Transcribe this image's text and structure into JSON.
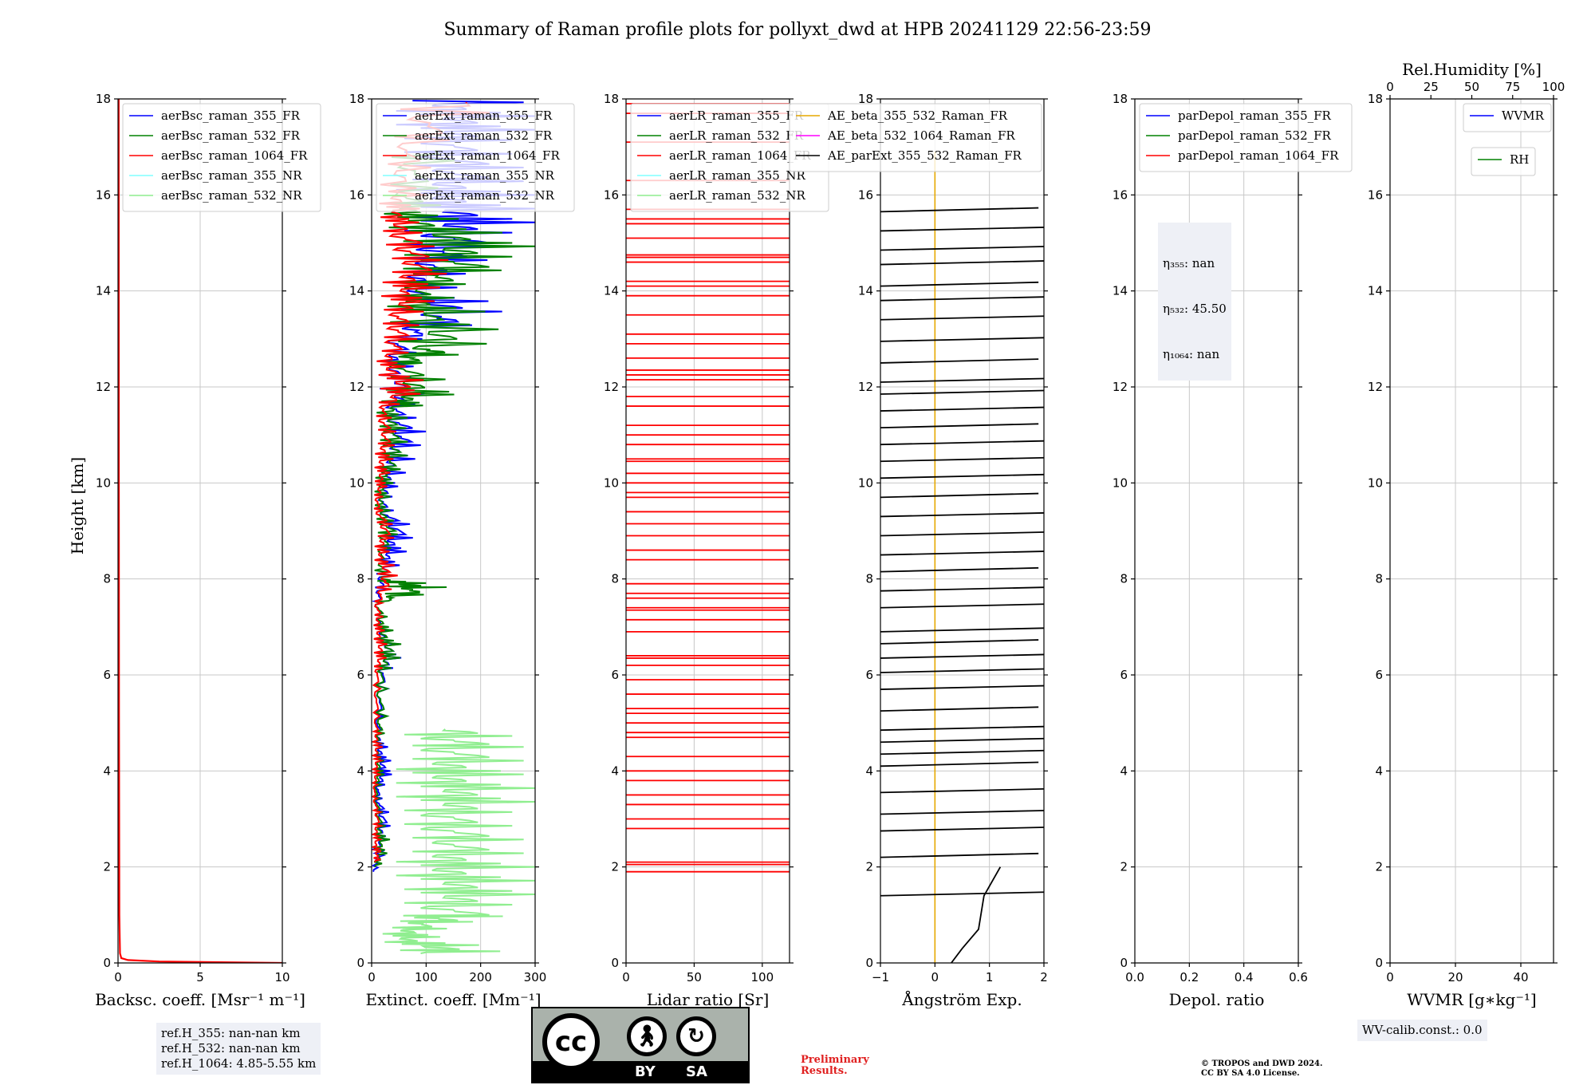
{
  "title": "Summary of Raman profile plots for pollyxt_dwd at HPB 20241129 22:56-23:59",
  "ylabel": "Height [km]",
  "y_ticks": [
    "0",
    "2",
    "4",
    "6",
    "8",
    "10",
    "12",
    "14",
    "16",
    "18"
  ],
  "colors": {
    "blue": "#0000ff",
    "green": "#008000",
    "red": "#ff0000",
    "cyan": "#80ffff",
    "lightgreen": "#90ee90",
    "orange": "#e6a800",
    "magenta": "#ff00ff",
    "black": "#000000"
  },
  "chart_data": [
    {
      "type": "line",
      "id": "bsc",
      "xlabel": "Backsc. coeff. [Msr⁻¹ m⁻¹]",
      "xlim": [
        0,
        10
      ],
      "ylim": [
        0,
        18
      ],
      "x_ticks": [
        "0",
        "5",
        "10"
      ],
      "x_tick_values": [
        0,
        5,
        10
      ],
      "legend": [
        "aerBsc_raman_355_FR",
        "aerBsc_raman_532_FR",
        "aerBsc_raman_1064_FR",
        "aerBsc_raman_355_NR",
        "aerBsc_raman_532_NR"
      ],
      "legend_colors": [
        "#0000ff",
        "#008000",
        "#ff0000",
        "#80ffff",
        "#90ee90"
      ],
      "series": [
        {
          "name": "aerBsc_raman_1064_FR",
          "color": "#ff0000",
          "points": [
            [
              10,
              0
            ],
            [
              2.5,
              0.03
            ],
            [
              0.6,
              0.06
            ],
            [
              0.2,
              0.1
            ],
            [
              0.12,
              0.2
            ],
            [
              0.08,
              1
            ],
            [
              0.06,
              5
            ],
            [
              0.05,
              10
            ],
            [
              0.04,
              18
            ]
          ]
        }
      ]
    },
    {
      "type": "line",
      "id": "ext",
      "xlabel": "Extinct. coeff. [Mm⁻¹]",
      "xlim": [
        0,
        300
      ],
      "ylim": [
        0,
        18
      ],
      "x_ticks": [
        "0",
        "100",
        "200",
        "300"
      ],
      "x_tick_values": [
        0,
        100,
        200,
        300
      ],
      "legend": [
        "aerExt_raman_355_FR",
        "aerExt_raman_532_FR",
        "aerExt_raman_1064_FR",
        "aerExt_raman_355_NR",
        "aerExt_raman_532_NR"
      ],
      "legend_colors": [
        "#0000ff",
        "#008000",
        "#ff0000",
        "#80ffff",
        "#90ee90"
      ],
      "series": [
        {
          "name": "aerExt_raman_532_NR",
          "color": "#90ee90",
          "profile": [
            [
              0.2,
              300
            ],
            [
              0.5,
              120
            ],
            [
              0.8,
              160
            ],
            [
              1.0,
              300
            ],
            [
              1.5,
              300
            ],
            [
              2.0,
              300
            ],
            [
              2.5,
              300
            ],
            [
              3.0,
              300
            ],
            [
              3.5,
              300
            ],
            [
              4.0,
              300
            ],
            [
              4.5,
              300
            ],
            [
              4.9,
              300
            ]
          ]
        },
        {
          "name": "aerExt_raman_355_FR",
          "color": "#0000ff",
          "profile": [
            [
              1.9,
              10
            ],
            [
              2.5,
              30
            ],
            [
              3.0,
              40
            ],
            [
              3.5,
              20
            ],
            [
              4.0,
              40
            ],
            [
              4.5,
              30
            ],
            [
              5.0,
              20
            ],
            [
              6.0,
              40
            ],
            [
              6.5,
              60
            ],
            [
              7.0,
              30
            ],
            [
              7.5,
              20
            ],
            [
              8.0,
              40
            ],
            [
              8.5,
              60
            ],
            [
              9.0,
              90
            ],
            [
              9.5,
              40
            ],
            [
              10.0,
              50
            ],
            [
              10.5,
              80
            ],
            [
              11.0,
              110
            ],
            [
              11.5,
              90
            ],
            [
              12.0,
              100
            ],
            [
              12.5,
              80
            ],
            [
              13.0,
              100
            ],
            [
              13.5,
              300
            ],
            [
              14.0,
              150
            ],
            [
              14.5,
              200
            ],
            [
              15.0,
              300
            ],
            [
              15.5,
              300
            ],
            [
              16.0,
              300
            ],
            [
              16.5,
              300
            ],
            [
              17.0,
              300
            ],
            [
              17.5,
              300
            ],
            [
              18,
              300
            ]
          ]
        },
        {
          "name": "aerExt_raman_532_FR",
          "color": "#008000",
          "profile": [
            [
              2.0,
              20
            ],
            [
              2.5,
              35
            ],
            [
              3.0,
              25
            ],
            [
              3.5,
              15
            ],
            [
              4.0,
              25
            ],
            [
              4.5,
              20
            ],
            [
              5.0,
              30
            ],
            [
              6.0,
              35
            ],
            [
              6.5,
              60
            ],
            [
              7.0,
              40
            ],
            [
              7.5,
              20
            ],
            [
              7.8,
              180
            ],
            [
              8.0,
              40
            ],
            [
              8.5,
              30
            ],
            [
              9.0,
              60
            ],
            [
              9.5,
              30
            ],
            [
              10.0,
              40
            ],
            [
              10.5,
              70
            ],
            [
              11.0,
              80
            ],
            [
              11.5,
              60
            ],
            [
              11.9,
              180
            ],
            [
              12.5,
              100
            ],
            [
              12.8,
              250
            ],
            [
              13.5,
              220
            ],
            [
              14.0,
              140
            ],
            [
              14.5,
              300
            ],
            [
              15.0,
              300
            ],
            [
              15.5,
              160
            ],
            [
              16.0,
              120
            ],
            [
              17.0,
              200
            ]
          ]
        },
        {
          "name": "aerExt_raman_1064_FR",
          "color": "#ff0000",
          "profile": [
            [
              2.1,
              20
            ],
            [
              2.5,
              15
            ],
            [
              3.0,
              20
            ],
            [
              3.5,
              10
            ],
            [
              4.0,
              15
            ],
            [
              4.5,
              20
            ],
            [
              5.0,
              15
            ],
            [
              6.0,
              20
            ],
            [
              6.5,
              30
            ],
            [
              7.0,
              25
            ],
            [
              7.5,
              20
            ],
            [
              8.0,
              60
            ],
            [
              8.5,
              30
            ],
            [
              9.0,
              50
            ],
            [
              9.5,
              20
            ],
            [
              10.0,
              30
            ],
            [
              10.5,
              40
            ],
            [
              11.0,
              50
            ],
            [
              11.5,
              40
            ],
            [
              12.0,
              110
            ],
            [
              12.5,
              60
            ],
            [
              13.0,
              90
            ],
            [
              13.5,
              110
            ],
            [
              14.0,
              120
            ],
            [
              14.5,
              160
            ],
            [
              15.0,
              130
            ],
            [
              15.5,
              80
            ],
            [
              16.0,
              100
            ],
            [
              17.0,
              130
            ],
            [
              18,
              300
            ]
          ]
        }
      ]
    },
    {
      "type": "line",
      "id": "lr",
      "xlabel": "Lidar ratio [Sr]",
      "xlim": [
        0,
        120
      ],
      "ylim": [
        0,
        18
      ],
      "x_ticks": [
        "0",
        "50",
        "100"
      ],
      "x_tick_values": [
        0,
        50,
        100
      ],
      "legend": [
        "aerLR_raman_355_FR",
        "aerLR_raman_532_FR",
        "aerLR_raman_1064_FR",
        "aerLR_raman_355_NR",
        "aerLR_raman_532_NR"
      ],
      "legend_colors": [
        "#0000ff",
        "#008000",
        "#ff0000",
        "#80ffff",
        "#90ee90"
      ],
      "series": [
        {
          "name": "aerLR_raman_1064_FR",
          "color": "#ff0000",
          "hlines": [
            1.9,
            2.05,
            2.1,
            2.8,
            3.0,
            3.3,
            3.5,
            3.8,
            4.0,
            4.3,
            4.7,
            4.8,
            5.0,
            5.2,
            5.3,
            5.6,
            5.9,
            6.2,
            6.35,
            6.4,
            6.9,
            7.15,
            7.35,
            7.4,
            7.6,
            7.7,
            7.9,
            8.4,
            8.6,
            8.9,
            9.15,
            9.4,
            9.7,
            9.8,
            10.0,
            10.2,
            10.45,
            10.5,
            10.8,
            11.0,
            11.2,
            11.6,
            11.8,
            12.15,
            12.25,
            12.35,
            12.6,
            12.9,
            13.1,
            13.5,
            13.9,
            14.1,
            14.2,
            14.6,
            14.7,
            14.75,
            15.1,
            15.4,
            15.5,
            15.7,
            16.3,
            17.1,
            17.7,
            17.9
          ]
        }
      ]
    },
    {
      "type": "line",
      "id": "ae",
      "xlabel": "Ångström Exp.",
      "xlim": [
        -1,
        2
      ],
      "ylim": [
        0,
        18
      ],
      "x_ticks": [
        "−1",
        "0",
        "1",
        "2"
      ],
      "x_tick_values": [
        -1,
        0,
        1,
        2
      ],
      "legend": [
        "AE_beta_355_532_Raman_FR",
        "AE_beta_532_1064_Raman_FR",
        "AE_parExt_355_532_Raman_FR"
      ],
      "legend_colors": [
        "#e6a800",
        "#ff00ff",
        "#000000"
      ],
      "series": [
        {
          "name": "AE_beta_355_532_Raman_FR",
          "color": "#e6a800",
          "vline": 0
        },
        {
          "name": "AE_parExt_355_532_Raman_FR",
          "color": "#000000",
          "hlines": [
            1.4,
            2.2,
            2.75,
            3.1,
            3.55,
            4.1,
            4.35,
            4.6,
            4.85,
            5.25,
            5.7,
            6.05,
            6.35,
            6.65,
            6.9,
            7.4,
            7.75,
            8.15,
            8.5,
            8.9,
            9.3,
            9.7,
            10.1,
            10.45,
            10.8,
            11.15,
            11.5,
            11.85,
            12.1,
            12.5,
            12.95,
            13.4,
            13.8,
            14.1,
            14.55,
            14.85,
            15.25,
            15.65
          ],
          "base": [
            [
              0.3,
              0
            ],
            [
              0.5,
              0.3
            ],
            [
              0.8,
              0.7
            ],
            [
              0.9,
              1.4
            ],
            [
              1.2,
              2.0
            ]
          ]
        }
      ]
    },
    {
      "type": "line",
      "id": "dep",
      "xlabel": "Depol. ratio",
      "xlim": [
        0,
        0.6
      ],
      "ylim": [
        0,
        18
      ],
      "x_ticks": [
        "0.0",
        "0.2",
        "0.4",
        "0.6"
      ],
      "x_tick_values": [
        0,
        0.2,
        0.4,
        0.6
      ],
      "legend": [
        "parDepol_raman_355_FR",
        "parDepol_raman_532_FR",
        "parDepol_raman_1064_FR"
      ],
      "legend_colors": [
        "#0000ff",
        "#008000",
        "#ff0000"
      ],
      "series": []
    },
    {
      "type": "line",
      "id": "wv",
      "xlabel": "WVMR [g∗kg⁻¹]",
      "xlim": [
        0,
        50
      ],
      "ylim": [
        0,
        18
      ],
      "x_ticks": [
        "0",
        "20",
        "40"
      ],
      "x_tick_values": [
        0,
        20,
        40
      ],
      "top_axis_label": "Rel.Humidity [%]",
      "top_ticks": [
        "0",
        "25",
        "50",
        "75",
        "100"
      ],
      "top_tick_values": [
        0,
        25,
        50,
        75,
        100
      ],
      "legend": [
        "WVMR"
      ],
      "legend_colors": [
        "#0000ff"
      ],
      "legend2": [
        "RH"
      ],
      "legend2_colors": [
        "#008000"
      ],
      "series": []
    }
  ],
  "depol_box": {
    "l1": "η₃₅₅: nan",
    "l2": "η₅₃₂: 45.50",
    "l3": "η₁₀₆₄: nan"
  },
  "refh_box": "ref.H_355: nan-nan km\nref.H_532: nan-nan km\nref.H_1064: 4.85-5.55 km",
  "wv_calib": "WV-calib.const.: 0.0",
  "preliminary": "Preliminary\nResults.",
  "copyright": "© TROPOS and DWD 2024.\nCC BY SA 4.0 License.",
  "license_badge": {
    "cc": "cc",
    "by": "BY",
    "sa": "SA"
  }
}
